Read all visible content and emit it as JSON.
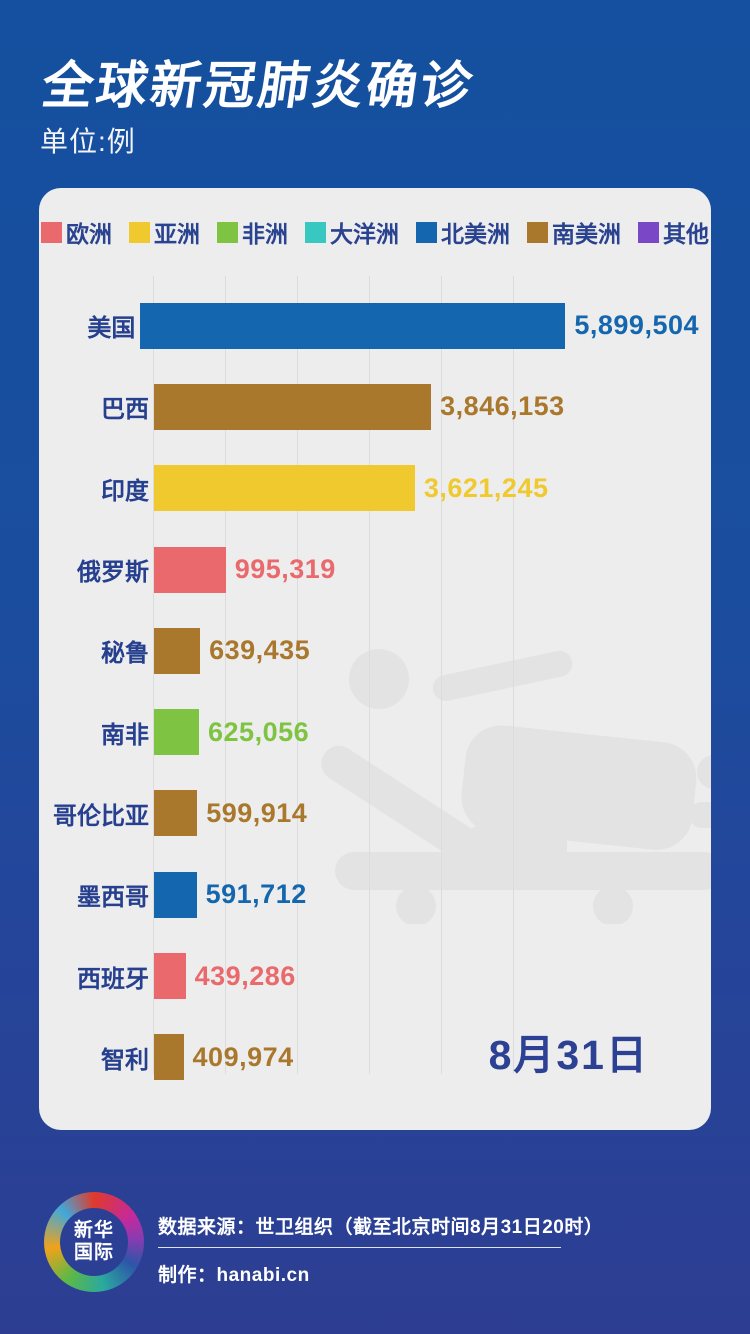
{
  "page": {
    "title": "全球新冠肺炎确诊",
    "subtitle": "单位:例"
  },
  "legend": {
    "items": [
      {
        "label": "欧洲",
        "color": "#ea696c"
      },
      {
        "label": "亚洲",
        "color": "#efc92e"
      },
      {
        "label": "非洲",
        "color": "#7fc342"
      },
      {
        "label": "大洋洲",
        "color": "#38c7c1"
      },
      {
        "label": "北美洲",
        "color": "#1467ae"
      },
      {
        "label": "南美洲",
        "color": "#a9782d"
      },
      {
        "label": "其他",
        "color": "#7a48c6"
      }
    ]
  },
  "chart_data": {
    "type": "bar",
    "orientation": "horizontal",
    "title": "全球新冠肺炎确诊",
    "unit": "例",
    "xlim": [
      0,
      6000000
    ],
    "gridline_interval": 1000000,
    "grid": true,
    "legend_position": "top",
    "date_annotation": "8月31日",
    "rows": [
      {
        "country": "美国",
        "value": 5899504,
        "value_label": "5,899,504",
        "continent": "北美洲"
      },
      {
        "country": "巴西",
        "value": 3846153,
        "value_label": "3,846,153",
        "continent": "南美洲"
      },
      {
        "country": "印度",
        "value": 3621245,
        "value_label": "3,621,245",
        "continent": "亚洲"
      },
      {
        "country": "俄罗斯",
        "value": 995319,
        "value_label": "995,319",
        "continent": "欧洲"
      },
      {
        "country": "秘鲁",
        "value": 639435,
        "value_label": "639,435",
        "continent": "南美洲"
      },
      {
        "country": "南非",
        "value": 625056,
        "value_label": "625,056",
        "continent": "非洲"
      },
      {
        "country": "哥伦比亚",
        "value": 599914,
        "value_label": "599,914",
        "continent": "南美洲"
      },
      {
        "country": "墨西哥",
        "value": 591712,
        "value_label": "591,712",
        "continent": "北美洲"
      },
      {
        "country": "西班牙",
        "value": 439286,
        "value_label": "439,286",
        "continent": "欧洲"
      },
      {
        "country": "智利",
        "value": 409974,
        "value_label": "409,974",
        "continent": "南美洲"
      }
    ]
  },
  "annotations": {
    "date_label": "8月31日"
  },
  "footer": {
    "logo_line1": "新华",
    "logo_line2": "国际",
    "source": "数据来源：世卫组织（截至北京时间8月31日20时）",
    "credit": "制作：hanabi.cn"
  },
  "colors": {
    "background_top": "#14509f",
    "background_bottom": "#2d3e92",
    "card_background": "#ededed",
    "gridline": "#dcdcdc",
    "watermark": "#e3e3e3",
    "label_navy": "#26408f",
    "date_navy": "#2c4193"
  }
}
